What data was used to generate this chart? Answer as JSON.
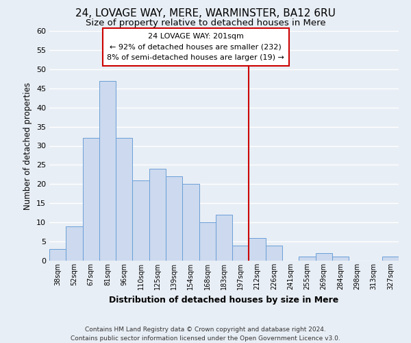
{
  "title": "24, LOVAGE WAY, MERE, WARMINSTER, BA12 6RU",
  "subtitle": "Size of property relative to detached houses in Mere",
  "xlabel": "Distribution of detached houses by size in Mere",
  "ylabel": "Number of detached properties",
  "footer_line1": "Contains HM Land Registry data © Crown copyright and database right 2024.",
  "footer_line2": "Contains public sector information licensed under the Open Government Licence v3.0.",
  "bin_labels": [
    "38sqm",
    "52sqm",
    "67sqm",
    "81sqm",
    "96sqm",
    "110sqm",
    "125sqm",
    "139sqm",
    "154sqm",
    "168sqm",
    "183sqm",
    "197sqm",
    "212sqm",
    "226sqm",
    "241sqm",
    "255sqm",
    "269sqm",
    "284sqm",
    "298sqm",
    "313sqm",
    "327sqm"
  ],
  "bar_values": [
    3,
    9,
    32,
    47,
    32,
    21,
    24,
    22,
    20,
    10,
    12,
    4,
    6,
    4,
    0,
    1,
    2,
    1,
    0,
    0,
    1
  ],
  "bar_color_normal": "#ccd9ee",
  "bar_edge_color": "#6a9fd8",
  "highlight_line_color": "#cc0000",
  "annotation_title": "24 LOVAGE WAY: 201sqm",
  "annotation_line1": "← 92% of detached houses are smaller (232)",
  "annotation_line2": "8% of semi-detached houses are larger (19) →",
  "annotation_box_color": "#ffffff",
  "annotation_box_edge": "#cc0000",
  "ylim_max": 60,
  "yticks": [
    0,
    5,
    10,
    15,
    20,
    25,
    30,
    35,
    40,
    45,
    50,
    55,
    60
  ],
  "bg_color": "#e8eef5",
  "grid_color": "#ffffff",
  "title_fontsize": 11,
  "subtitle_fontsize": 9.5,
  "xlabel_fontsize": 9,
  "ylabel_fontsize": 8.5,
  "footer_fontsize": 6.5
}
